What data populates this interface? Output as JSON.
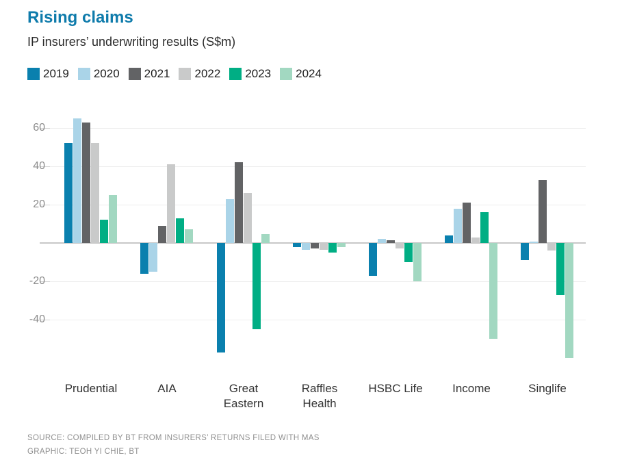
{
  "header": {
    "title": "Rising claims",
    "subtitle": "IP insurers’ underwriting results (S$m)"
  },
  "footer": {
    "source": "SOURCE: COMPILED BY BT FROM INSURERS’ RETURNS FILED WITH MAS",
    "graphic": "GRAPHIC: TEOH YI CHIE, BT"
  },
  "chart_data": {
    "type": "bar",
    "title": "Rising claims",
    "subtitle": "IP insurers’ underwriting results (S$m)",
    "grid": "horizontal",
    "legend_position": "top",
    "ylim": [
      -62,
      68
    ],
    "yticks": [
      60,
      40,
      20,
      -20,
      -40
    ],
    "categories": [
      {
        "name": "Prudential",
        "lines": [
          "Prudential"
        ]
      },
      {
        "name": "AIA",
        "lines": [
          "AIA"
        ]
      },
      {
        "name": "Great Eastern",
        "lines": [
          "Great",
          "Eastern"
        ]
      },
      {
        "name": "Raffles Health",
        "lines": [
          "Raffles",
          "Health"
        ]
      },
      {
        "name": "HSBC Life",
        "lines": [
          "HSBC Life"
        ]
      },
      {
        "name": "Income",
        "lines": [
          "Income"
        ]
      },
      {
        "name": "Singlife",
        "lines": [
          "Singlife"
        ]
      }
    ],
    "series": [
      {
        "name": "2019",
        "color": "#0a80ae",
        "values": [
          52,
          -16,
          -57,
          -2,
          -17,
          4,
          -9
        ]
      },
      {
        "name": "2020",
        "color": "#aad4e8",
        "values": [
          65,
          -15,
          23,
          -3.5,
          2,
          18,
          0.7
        ]
      },
      {
        "name": "2021",
        "color": "#626365",
        "values": [
          63,
          9,
          42,
          -3,
          1.5,
          21,
          33
        ]
      },
      {
        "name": "2022",
        "color": "#c9caca",
        "values": [
          52,
          41,
          26,
          -3.5,
          -3,
          3,
          -4
        ]
      },
      {
        "name": "2023",
        "color": "#00ae84",
        "values": [
          12,
          13,
          -45,
          -5,
          -10,
          16,
          -27
        ]
      },
      {
        "name": "2024",
        "color": "#a2d8c1",
        "values": [
          25,
          7,
          4.5,
          -2,
          -20,
          -50,
          -60
        ]
      }
    ]
  }
}
